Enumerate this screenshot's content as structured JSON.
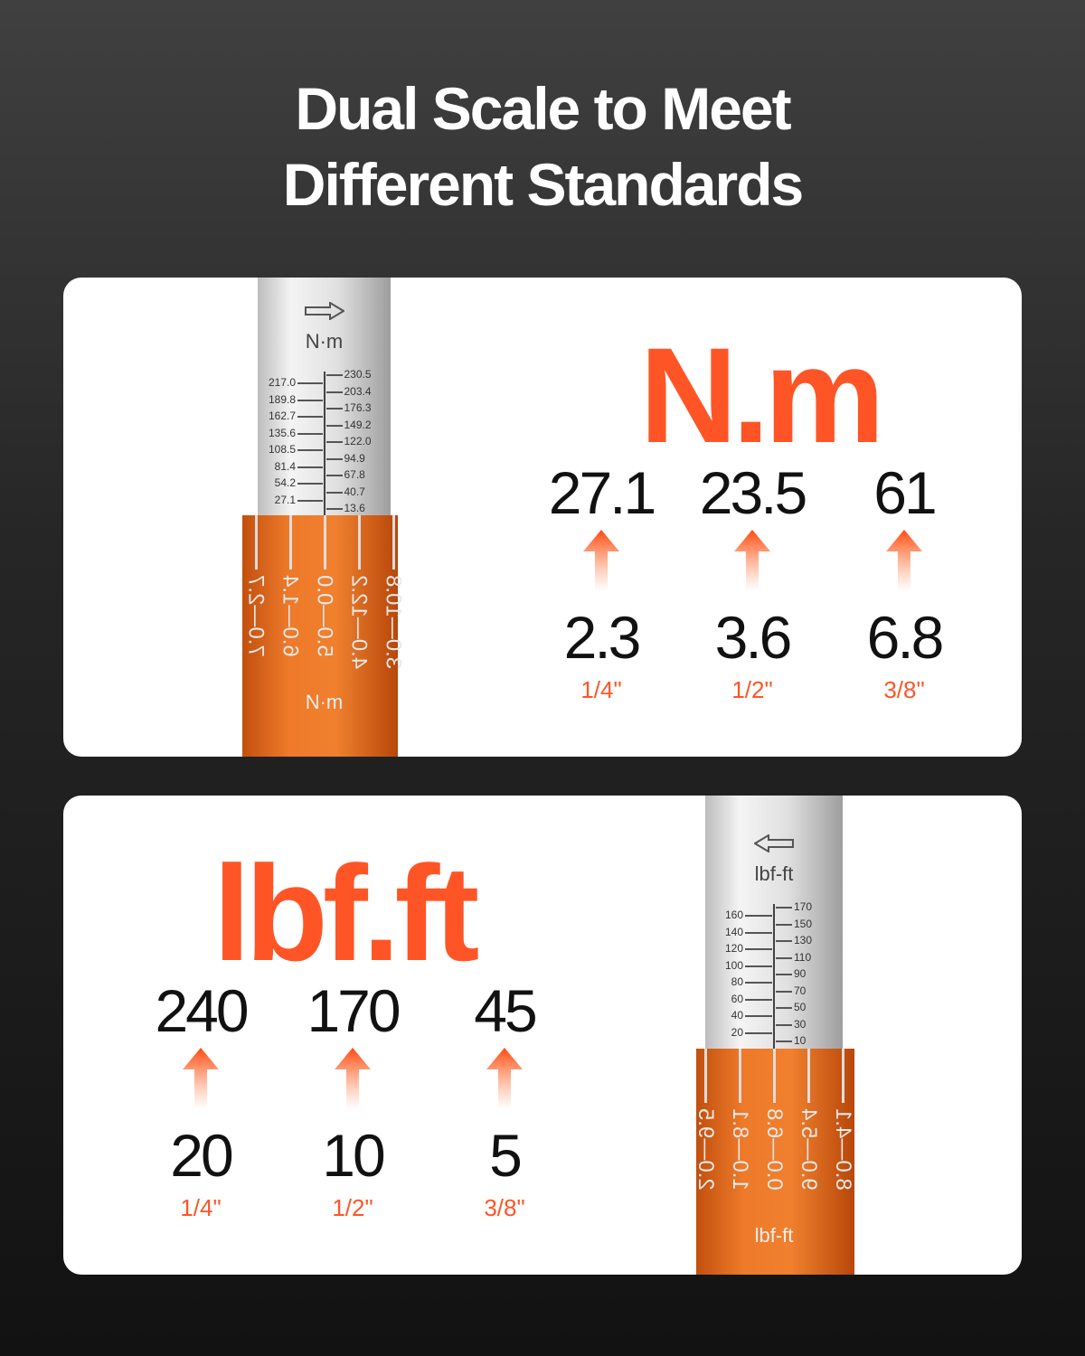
{
  "title": {
    "line1": "Dual Scale to Meet",
    "line2": "Different Standards"
  },
  "colors": {
    "accent": "#ff5526",
    "sleeve": "#ee7a2a"
  },
  "nm": {
    "unit": "N.m",
    "items": [
      {
        "max": "27.1",
        "min": "2.3",
        "size": "1/4\""
      },
      {
        "max": "23.5",
        "min": "3.6",
        "size": "1/2\""
      },
      {
        "max": "61",
        "min": "6.8",
        "size": "3/8\""
      }
    ],
    "wrench": {
      "tube_label": "N·m",
      "left": [
        "217.0",
        "189.8",
        "162.7",
        "135.6",
        "108.5",
        "81.4",
        "54.2",
        "27.1"
      ],
      "right": [
        "230.5",
        "203.4",
        "176.3",
        "149.2",
        "122.0",
        "94.9",
        "67.8",
        "40.7",
        "13.6"
      ],
      "sleeve_cols": [
        "7.0—2.7",
        "6.0—1.4",
        "5.0—0.0",
        "4.0—12.2",
        "3.0—10.8"
      ],
      "sleeve_label": "N·m"
    }
  },
  "lbf": {
    "unit": "lbf.ft",
    "items": [
      {
        "max": "240",
        "min": "20",
        "size": "1/4\""
      },
      {
        "max": "170",
        "min": "10",
        "size": "1/2\""
      },
      {
        "max": "45",
        "min": "5",
        "size": "3/8\""
      }
    ],
    "wrench": {
      "tube_label": "lbf-ft",
      "left": [
        "160",
        "140",
        "120",
        "100",
        "80",
        "60",
        "40",
        "20"
      ],
      "right": [
        "170",
        "150",
        "130",
        "110",
        "90",
        "70",
        "50",
        "30",
        "10"
      ],
      "sleeve_cols": [
        "2.0—9.5",
        "1.0—8.1",
        "0.0—6.8",
        "9.0—5.4",
        "8.0—4.1"
      ],
      "sleeve_label": "lbf-ft"
    }
  }
}
